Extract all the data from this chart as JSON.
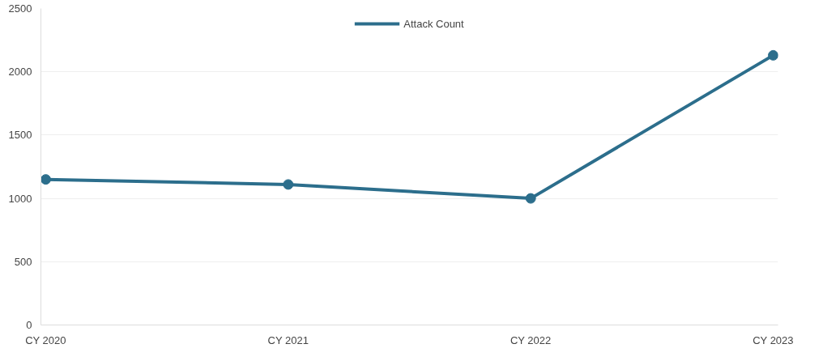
{
  "chart_data": {
    "type": "line",
    "categories": [
      "CY 2020",
      "CY 2021",
      "CY 2022",
      "CY 2023"
    ],
    "series": [
      {
        "name": "Attack Count",
        "color": "#2c6e8c",
        "values": [
          1150,
          1110,
          1000,
          2130
        ]
      }
    ],
    "ylim": [
      0,
      2500
    ],
    "yticks": [
      0,
      500,
      1000,
      1500,
      2000,
      2500
    ],
    "grid": "y",
    "legend": "top",
    "marker": "circle"
  }
}
